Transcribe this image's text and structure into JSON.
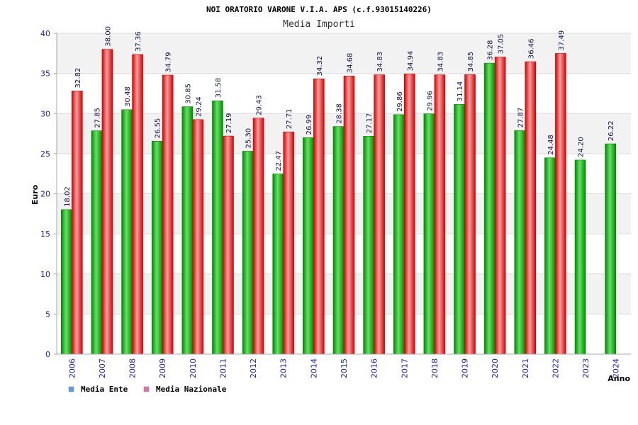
{
  "chart_data": {
    "type": "bar",
    "title": "NOI ORATORIO VARONE V.I.A. APS (c.f.93015140226)",
    "subtitle": "Media Importi",
    "xlabel": "Anno",
    "ylabel": "Euro",
    "ylim": [
      0,
      40
    ],
    "yticks": [
      "0",
      "5",
      "10",
      "15",
      "20",
      "25",
      "30",
      "35",
      "40"
    ],
    "categories": [
      "2006",
      "2007",
      "2008",
      "2009",
      "2010",
      "2011",
      "2012",
      "2013",
      "2014",
      "2015",
      "2016",
      "2017",
      "2018",
      "2019",
      "2020",
      "2021",
      "2022",
      "2023",
      "2024"
    ],
    "series": [
      {
        "name": "Media Ente",
        "values": [
          18.02,
          27.85,
          30.48,
          26.55,
          30.85,
          31.58,
          25.3,
          22.47,
          26.99,
          28.38,
          27.17,
          29.86,
          29.96,
          31.14,
          36.28,
          27.87,
          24.48,
          24.2,
          26.22
        ],
        "labels": [
          "18.02",
          "27.85",
          "30.48",
          "26.55",
          "30.85",
          "31.58",
          "25.30",
          "22.47",
          "26.99",
          "28.38",
          "27.17",
          "29.86",
          "29.96",
          "31.14",
          "36.28",
          "27.87",
          "24.48",
          "24.20",
          "26.22"
        ]
      },
      {
        "name": "Media Nazionale",
        "values": [
          32.82,
          38.0,
          37.36,
          34.79,
          29.24,
          27.19,
          29.43,
          27.71,
          34.32,
          34.68,
          34.83,
          34.94,
          34.83,
          34.85,
          37.05,
          36.46,
          37.49,
          null,
          null
        ],
        "labels": [
          "32.82",
          "38.00",
          "37.36",
          "34.79",
          "29.24",
          "27.19",
          "29.43",
          "27.71",
          "34.32",
          "34.68",
          "34.83",
          "34.94",
          "34.83",
          "34.85",
          "37.05",
          "36.46",
          "37.49",
          null,
          null
        ]
      }
    ],
    "legend": [
      {
        "name": "Media Ente",
        "swatch_color": "#5aa0e0"
      },
      {
        "name": "Media Nazionale",
        "swatch_color": "#e070b0"
      }
    ],
    "legend_position": "bottom-left",
    "grid": true,
    "colors": {
      "ente_dark": "#008a00",
      "ente_light": "#66e066",
      "naz_dark": "#d80000",
      "naz_light": "#f2a0a0",
      "band": "#f2f2f2",
      "grid": "#dcdcdc",
      "axis": "#aaaaaa"
    }
  }
}
